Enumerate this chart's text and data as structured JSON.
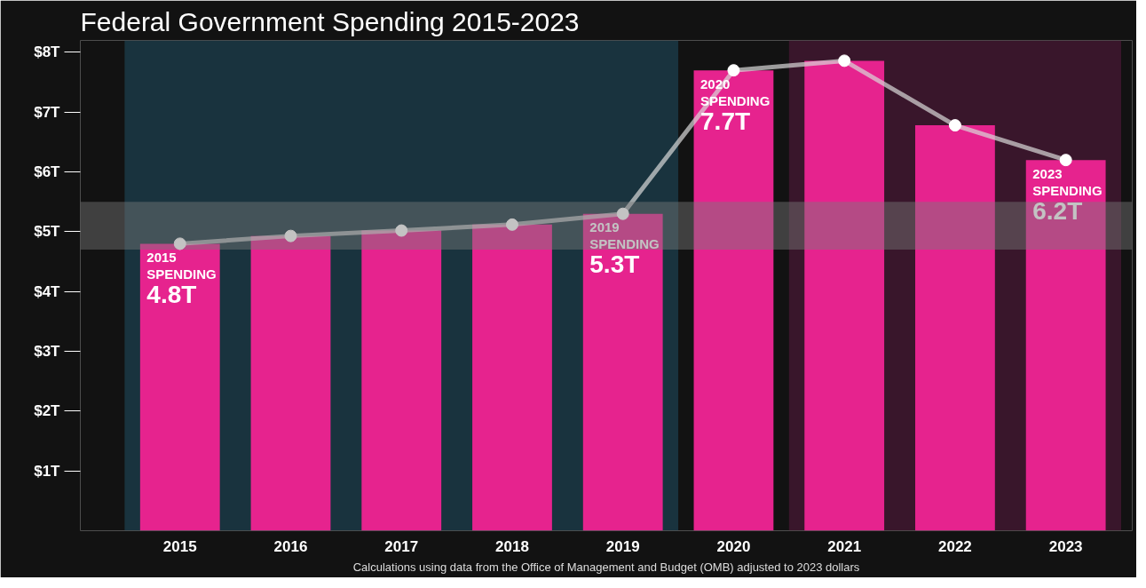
{
  "chart_data": {
    "type": "bar",
    "title": "Federal Government Spending 2015-2023",
    "categories": [
      "2015",
      "2016",
      "2017",
      "2018",
      "2019",
      "2020",
      "2021",
      "2022",
      "2023"
    ],
    "series": [
      {
        "color": "#e6238e",
        "values": [
          4.8,
          4.93,
          5.02,
          5.12,
          5.3,
          7.7,
          7.86,
          6.78,
          6.2
        ],
        "value_labels": [
          "4.8T",
          null,
          null,
          null,
          "5.3T",
          "7.7T",
          null,
          null,
          "6.2T"
        ]
      },
      {
        "type": "line",
        "color": "#d9d9d9",
        "marker": "circle",
        "values": [
          4.8,
          4.93,
          5.02,
          5.12,
          5.3,
          7.7,
          7.86,
          6.78,
          6.2
        ]
      }
    ],
    "ylim": [
      0,
      8.2
    ],
    "yticks": [
      {
        "value": 1,
        "label": "$1T"
      },
      {
        "value": 2,
        "label": "$2T"
      },
      {
        "value": 3,
        "label": "$3T"
      },
      {
        "value": 4,
        "label": "$4T"
      },
      {
        "value": 5,
        "label": "$5T"
      },
      {
        "value": 6,
        "label": "$6T"
      },
      {
        "value": 7,
        "label": "$7T"
      },
      {
        "value": 8,
        "label": "$8T"
      }
    ],
    "bands": [
      {
        "axis": "x",
        "from": "2015",
        "to": "2019",
        "color": "#1f4f63"
      },
      {
        "axis": "x",
        "from": "2021",
        "to": "2023",
        "color": "#5a1a40"
      },
      {
        "axis": "y",
        "from": 4.7,
        "to": 5.5,
        "color": "#7a7a7a"
      }
    ],
    "annotations": [
      {
        "text": "2015\nSPENDING",
        "x": "2015",
        "y": 4.8
      },
      {
        "text": "2019\nSPENDING",
        "x": "2019",
        "y": 5.3
      },
      {
        "text": "2020\nSPENDING",
        "x": "2020",
        "y": 7.7
      },
      {
        "text": "2023\nSPENDING",
        "x": "2023",
        "y": 6.2
      },
      "Calculations using data from the Office of Management and Budget (OMB) adjusted to 2023 dollars"
    ],
    "grid": false
  }
}
